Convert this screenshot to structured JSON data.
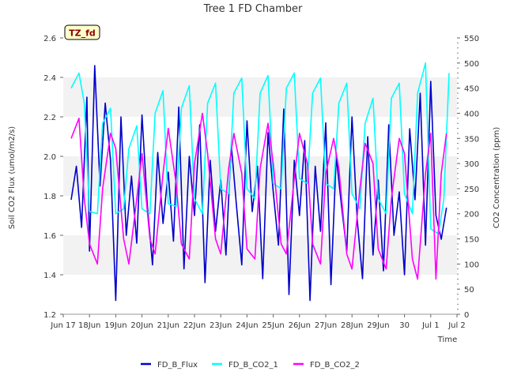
{
  "chart_data": {
    "type": "line",
    "title": "Tree 1 FD Chamber",
    "badge": "TZ_fd",
    "xlabel": "Time",
    "ylabel": "Soil CO2 Flux (umol/m2/s)",
    "y2label": "CO2 Concentration (ppm)",
    "x_ticks": [
      "Jun 17",
      "Jun 18",
      "Jun 19",
      "Jun 20",
      "Jun 21",
      "Jun 22",
      "Jun 23",
      "Jun 24",
      "Jun 25",
      "Jun 26",
      "Jun 27",
      "Jun 28",
      "Jun 29",
      "Jun 30",
      "Jul 1",
      "Jul 2"
    ],
    "x_tick_labels": [
      "Jun 17",
      "18Jun",
      "19Jun",
      "20Jun",
      "21Jun",
      "22Jun",
      "23Jun",
      "24Jun",
      "25Jun",
      "26Jun",
      "27Jun",
      "28Jun",
      "29Jun",
      "30",
      "Jul 1",
      "Jul 2"
    ],
    "xlim_days": [
      0,
      15
    ],
    "ylim": [
      1.2,
      2.6
    ],
    "y_ticks": [
      "1.2",
      "1.4",
      "1.6",
      "1.8",
      "2.0",
      "2.2",
      "2.4",
      "2.6"
    ],
    "y2lim": [
      0,
      550
    ],
    "y2_ticks": [
      "0",
      "50",
      "100",
      "150",
      "200",
      "250",
      "300",
      "350",
      "400",
      "450",
      "500",
      "550"
    ],
    "grid": "horizontal bands",
    "legend_position": "bottom-center",
    "series": [
      {
        "name": "FD_B_Flux",
        "axis": "left",
        "color": "#0000cc",
        "x": [
          0.3,
          0.5,
          0.7,
          0.9,
          1.0,
          1.2,
          1.4,
          1.6,
          1.8,
          2.0,
          2.2,
          2.4,
          2.6,
          2.8,
          3.0,
          3.2,
          3.4,
          3.6,
          3.8,
          4.0,
          4.2,
          4.4,
          4.6,
          4.8,
          5.0,
          5.2,
          5.4,
          5.6,
          5.8,
          6.0,
          6.2,
          6.4,
          6.6,
          6.8,
          7.0,
          7.2,
          7.4,
          7.6,
          7.8,
          8.0,
          8.2,
          8.4,
          8.6,
          8.8,
          9.0,
          9.2,
          9.4,
          9.6,
          9.8,
          10.0,
          10.2,
          10.4,
          10.6,
          10.8,
          11.0,
          11.2,
          11.4,
          11.6,
          11.8,
          12.0,
          12.2,
          12.4,
          12.6,
          12.8,
          13.0,
          13.2,
          13.4,
          13.6,
          13.8,
          14.0,
          14.2,
          14.4,
          14.6
        ],
        "values": [
          1.78,
          1.95,
          1.64,
          2.3,
          1.52,
          2.46,
          1.85,
          2.27,
          1.98,
          1.27,
          2.2,
          1.6,
          1.9,
          1.56,
          2.21,
          1.76,
          1.45,
          2.02,
          1.66,
          1.92,
          1.57,
          2.25,
          1.43,
          2.0,
          1.7,
          2.16,
          1.36,
          1.98,
          1.62,
          1.88,
          1.5,
          2.06,
          1.75,
          1.45,
          2.18,
          1.72,
          1.95,
          1.38,
          2.12,
          1.82,
          1.55,
          2.24,
          1.3,
          1.98,
          1.7,
          2.08,
          1.27,
          1.95,
          1.62,
          2.17,
          1.35,
          2.0,
          1.75,
          1.52,
          2.2,
          1.68,
          1.38,
          2.1,
          1.5,
          1.88,
          1.42,
          2.16,
          1.6,
          1.82,
          1.4,
          2.14,
          1.78,
          2.32,
          1.55,
          2.38,
          1.7,
          1.58,
          1.74
        ]
      },
      {
        "name": "FD_B_CO2_1",
        "axis": "right",
        "color": "#00ffff",
        "x": [
          0.3,
          0.6,
          0.8,
          1.0,
          1.3,
          1.5,
          1.8,
          2.0,
          2.3,
          2.5,
          2.8,
          3.0,
          3.3,
          3.5,
          3.8,
          4.0,
          4.3,
          4.5,
          4.8,
          5.0,
          5.3,
          5.5,
          5.8,
          6.0,
          6.3,
          6.5,
          6.8,
          7.0,
          7.3,
          7.5,
          7.8,
          8.0,
          8.3,
          8.5,
          8.8,
          9.0,
          9.3,
          9.5,
          9.8,
          10.0,
          10.3,
          10.5,
          10.8,
          11.0,
          11.3,
          11.5,
          11.8,
          12.0,
          12.3,
          12.5,
          12.8,
          13.0,
          13.3,
          13.5,
          13.8,
          14.0,
          14.3,
          14.5,
          14.7
        ],
        "values": [
          450,
          480,
          420,
          205,
          200,
          380,
          410,
          200,
          210,
          330,
          375,
          210,
          200,
          400,
          445,
          220,
          215,
          410,
          455,
          230,
          200,
          420,
          460,
          250,
          240,
          440,
          470,
          250,
          230,
          440,
          475,
          260,
          250,
          450,
          480,
          270,
          260,
          440,
          470,
          260,
          250,
          420,
          460,
          240,
          210,
          380,
          430,
          230,
          200,
          430,
          460,
          240,
          200,
          440,
          500,
          170,
          160,
          230,
          480
        ]
      },
      {
        "name": "FD_B_CO2_2",
        "axis": "right",
        "color": "#ff00ff",
        "x": [
          0.3,
          0.6,
          0.8,
          1.0,
          1.3,
          1.5,
          1.8,
          2.0,
          2.3,
          2.5,
          2.8,
          3.0,
          3.3,
          3.5,
          3.8,
          4.0,
          4.3,
          4.5,
          4.8,
          5.0,
          5.3,
          5.5,
          5.8,
          6.0,
          6.3,
          6.5,
          6.8,
          7.0,
          7.3,
          7.5,
          7.8,
          8.0,
          8.3,
          8.5,
          8.8,
          9.0,
          9.3,
          9.5,
          9.8,
          10.0,
          10.3,
          10.5,
          10.8,
          11.0,
          11.3,
          11.5,
          11.8,
          12.0,
          12.3,
          12.5,
          12.8,
          13.0,
          13.3,
          13.5,
          13.8,
          14.0,
          14.2,
          14.4,
          14.6
        ],
        "values": [
          350,
          390,
          230,
          140,
          100,
          250,
          360,
          330,
          150,
          100,
          230,
          320,
          150,
          120,
          280,
          370,
          260,
          140,
          110,
          300,
          400,
          320,
          150,
          120,
          290,
          360,
          280,
          130,
          110,
          290,
          380,
          300,
          140,
          120,
          270,
          360,
          300,
          140,
          100,
          280,
          350,
          290,
          120,
          90,
          250,
          340,
          300,
          130,
          90,
          230,
          350,
          320,
          110,
          70,
          280,
          360,
          70,
          280,
          360
        ]
      }
    ]
  }
}
